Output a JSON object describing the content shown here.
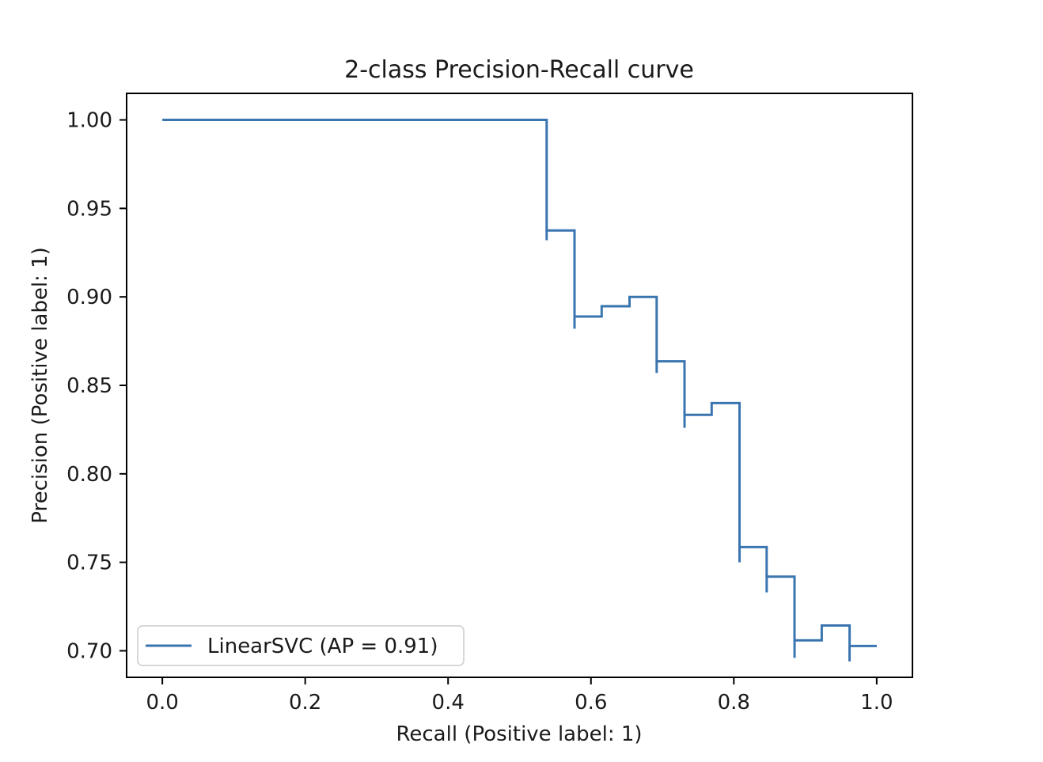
{
  "chart_data": {
    "type": "line",
    "title": "2-class Precision-Recall curve",
    "xlabel": "Recall (Positive label: 1)",
    "ylabel": "Precision (Positive label: 1)",
    "xlim": [
      -0.05,
      1.05
    ],
    "ylim": [
      0.685,
      1.015
    ],
    "xticks": [
      0.0,
      0.2,
      0.4,
      0.6,
      0.8,
      1.0
    ],
    "xtick_labels": [
      "0.0",
      "0.2",
      "0.4",
      "0.6",
      "0.8",
      "1.0"
    ],
    "yticks": [
      0.7,
      0.75,
      0.8,
      0.85,
      0.9,
      0.95,
      1.0
    ],
    "ytick_labels": [
      "0.70",
      "0.75",
      "0.80",
      "0.85",
      "0.90",
      "0.95",
      "1.00"
    ],
    "grid": false,
    "legend_position": "lower-left",
    "series": [
      {
        "name": "LinearSVC (AP = 0.91)",
        "color": "#3a75b0",
        "drawstyle": "steps-post",
        "x": [
          0.0,
          0.538,
          0.538,
          0.577,
          0.577,
          0.615,
          0.615,
          0.654,
          0.654,
          0.692,
          0.692,
          0.731,
          0.731,
          0.769,
          0.769,
          0.808,
          0.808,
          0.846,
          0.846,
          0.885,
          0.885,
          0.923,
          0.923,
          0.962,
          0.962,
          1.0
        ],
        "y": [
          1.0,
          1.0,
          0.9375,
          0.9375,
          0.8889,
          0.8889,
          0.8947,
          0.8947,
          0.9,
          0.9,
          0.8636,
          0.8636,
          0.8333,
          0.8333,
          0.84,
          0.84,
          0.7586,
          0.7586,
          0.7419,
          0.7419,
          0.7059,
          0.7059,
          0.7143,
          0.7143,
          0.7027,
          0.7027
        ],
        "marker_drops": [
          {
            "x": 0.538,
            "y_top": 0.9375,
            "y_bottom": 0.932
          },
          {
            "x": 0.577,
            "y_top": 0.8889,
            "y_bottom": 0.882
          },
          {
            "x": 0.692,
            "y_top": 0.8636,
            "y_bottom": 0.857
          },
          {
            "x": 0.731,
            "y_top": 0.8333,
            "y_bottom": 0.826
          },
          {
            "x": 0.808,
            "y_top": 0.7586,
            "y_bottom": 0.75
          },
          {
            "x": 0.846,
            "y_top": 0.7419,
            "y_bottom": 0.733
          },
          {
            "x": 0.885,
            "y_top": 0.7059,
            "y_bottom": 0.696
          },
          {
            "x": 0.962,
            "y_top": 0.7027,
            "y_bottom": 0.694
          }
        ]
      }
    ]
  }
}
